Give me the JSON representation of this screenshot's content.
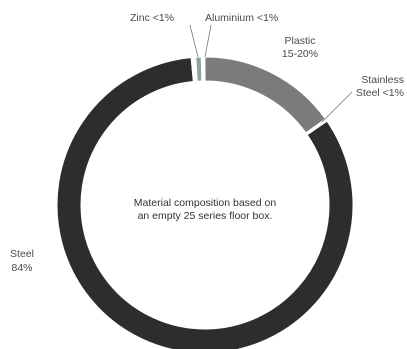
{
  "chart_data": {
    "type": "pie",
    "style": "donut",
    "center_text": [
      "Material composition based on",
      "an empty 25 series floor box."
    ],
    "slices": [
      {
        "name": "Plastic",
        "label_lines": [
          "Plastic",
          "15-20%"
        ],
        "value": 15.2,
        "color": "#7a7c7c"
      },
      {
        "name": "Stainless Steel",
        "label_lines": [
          "Stainless",
          "Steel <1%"
        ],
        "value": 0.3,
        "color": "#ffffff"
      },
      {
        "name": "Steel",
        "label_lines": [
          "Steel",
          "84%"
        ],
        "value": 83.5,
        "color": "#2b2d2f"
      },
      {
        "name": "Zinc",
        "label_lines": [
          "Zinc <1%"
        ],
        "value": 0.5,
        "color": "#ffffff"
      },
      {
        "name": "Zinc fill",
        "label_lines": [],
        "value": 0.6,
        "color": "#8fa3a3"
      },
      {
        "name": "Aluminium",
        "label_lines": [
          "Aluminium <1%"
        ],
        "value": 0.4,
        "color": "#ffffff"
      }
    ],
    "start_angle_deg": 0,
    "legend": "none",
    "grid": false
  }
}
